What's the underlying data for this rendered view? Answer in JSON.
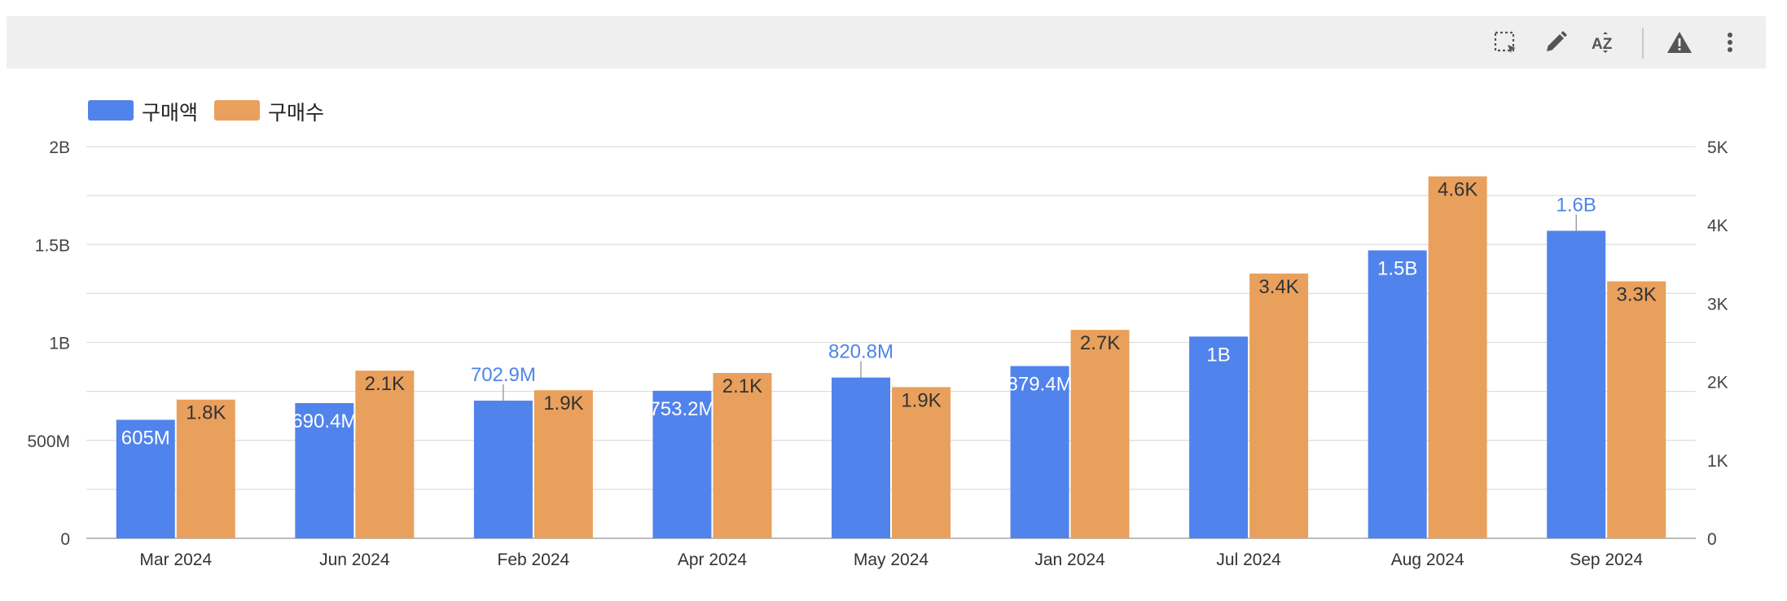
{
  "toolbar": {
    "icons": [
      "select-area-icon",
      "edit-pencil-icon",
      "sort-az-icon",
      "warning-icon",
      "more-vert-icon"
    ],
    "sort_label": "AZ"
  },
  "colors": {
    "series1": "#5083ec",
    "series2": "#e9a05c",
    "grid": "#dddddd",
    "axis": "#444444",
    "label1": "#4f84e8"
  },
  "chart_data": {
    "type": "bar",
    "categories": [
      "Mar 2024",
      "Jun 2024",
      "Feb 2024",
      "Apr 2024",
      "May 2024",
      "Jan 2024",
      "Jul 2024",
      "Aug 2024",
      "Sep 2024"
    ],
    "series": [
      {
        "name": "구매액",
        "axis": "left",
        "values": [
          605000000,
          690400000,
          702900000,
          753200000,
          820800000,
          879400000,
          1030000000,
          1470000000,
          1570000000
        ],
        "labels": [
          "605M",
          "690.4M",
          "702.9M",
          "753.2M",
          "820.8M",
          "879.4M",
          "1B",
          "1.5B",
          "1.6B"
        ]
      },
      {
        "name": "구매수",
        "axis": "right",
        "values": [
          1770,
          2140,
          1890,
          2110,
          1930,
          2660,
          3380,
          4620,
          3280
        ],
        "labels": [
          "1.8K",
          "2.1K",
          "1.9K",
          "2.1K",
          "1.9K",
          "2.7K",
          "3.4K",
          "4.6K",
          "3.3K"
        ]
      }
    ],
    "y_left": {
      "lim": [
        0,
        2000000000
      ],
      "ticks": [
        0,
        500000000,
        1000000000,
        1500000000,
        2000000000
      ],
      "tick_labels": [
        "0",
        "500M",
        "1B",
        "1.5B",
        "2B"
      ]
    },
    "y_right": {
      "lim": [
        0,
        5000
      ],
      "ticks": [
        0,
        1000,
        2000,
        3000,
        4000,
        5000
      ],
      "tick_labels": [
        "0",
        "1K",
        "2K",
        "3K",
        "4K",
        "5K"
      ]
    },
    "grid": true,
    "legend": "top-left",
    "title": "",
    "xlabel": "",
    "ylabel": ""
  }
}
